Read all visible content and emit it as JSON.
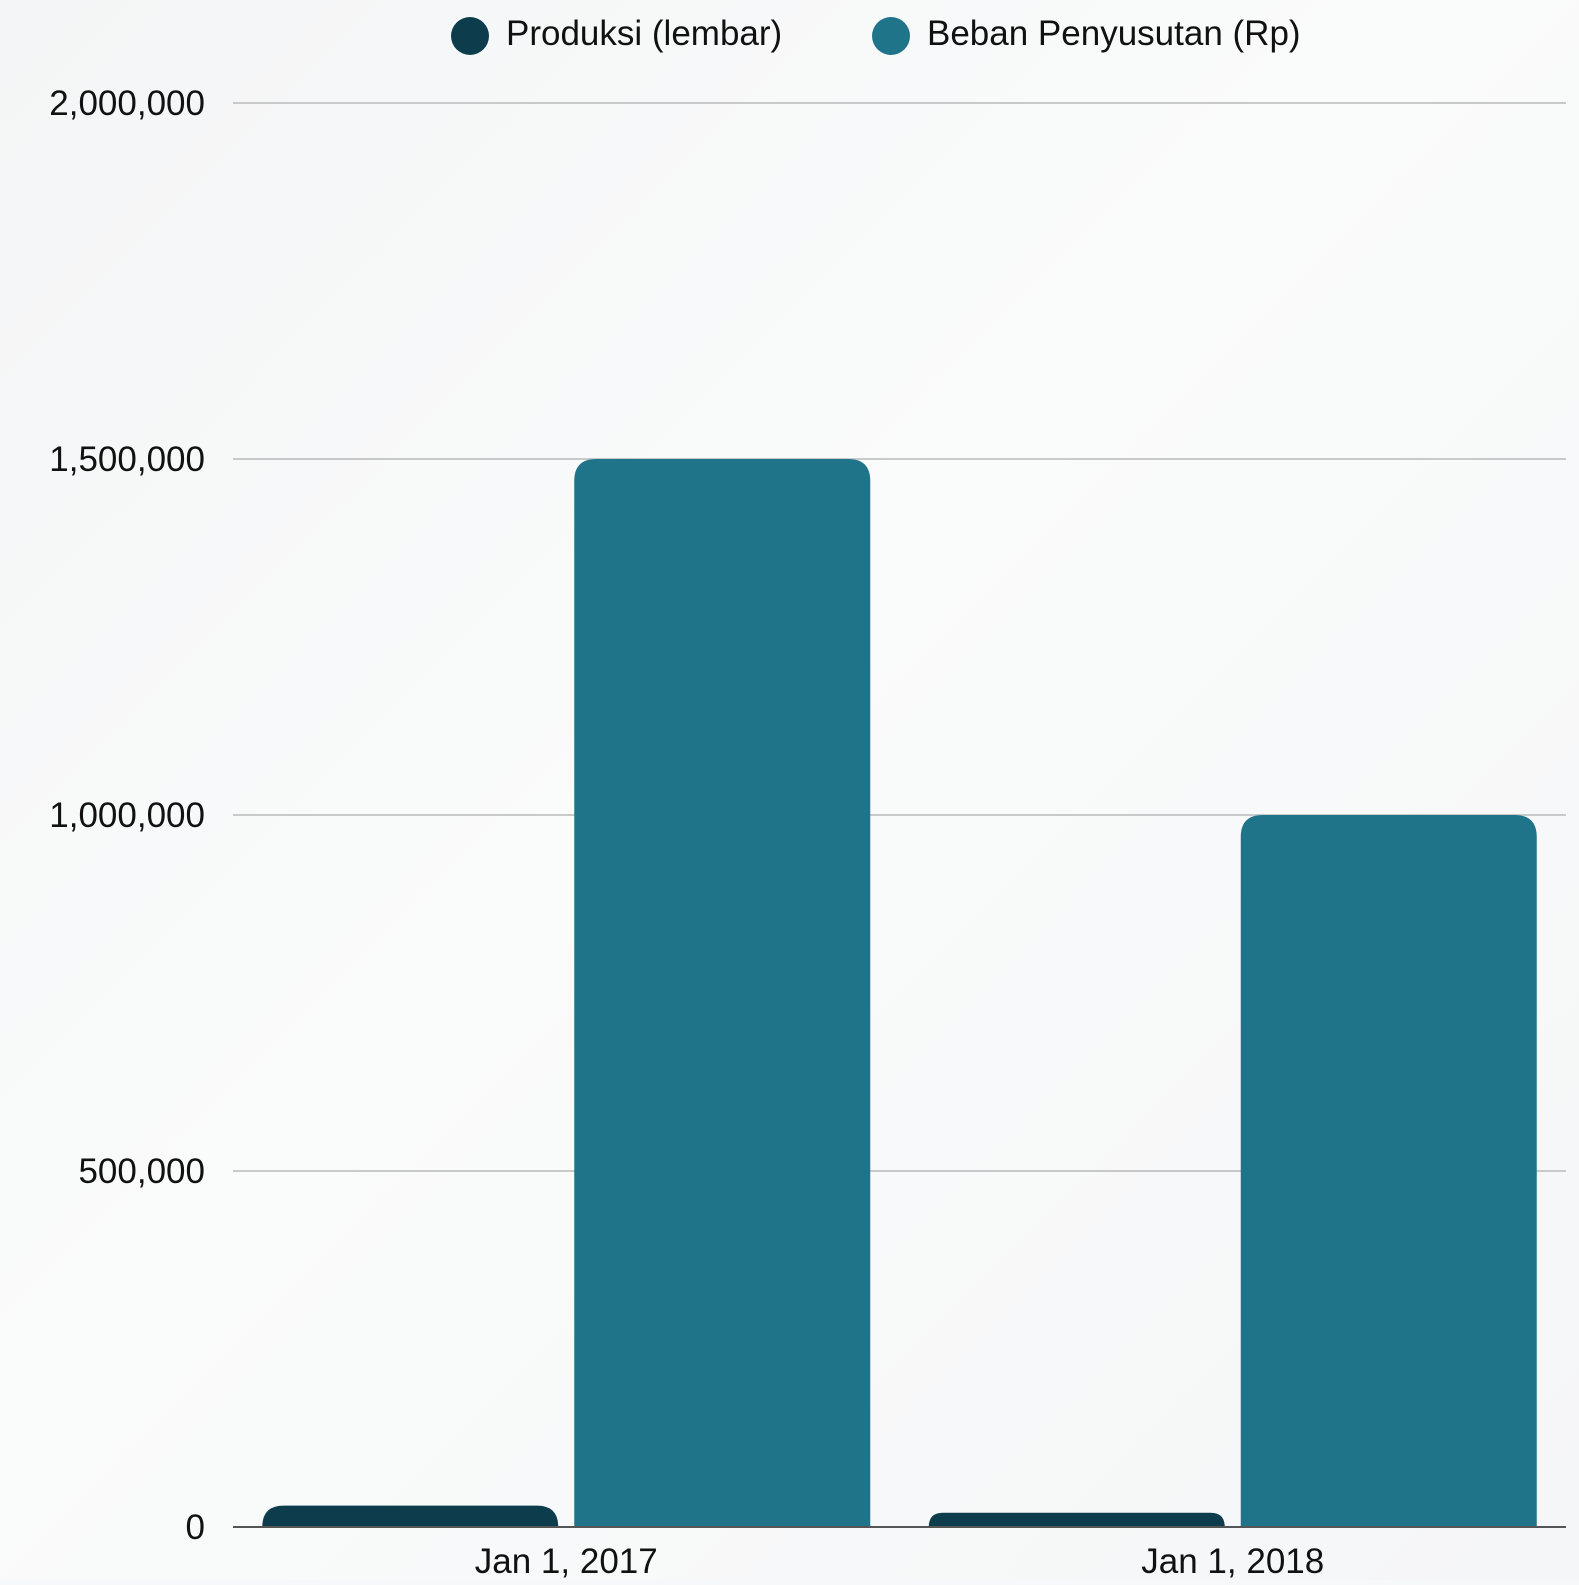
{
  "chart_data": {
    "type": "bar",
    "title": "",
    "xlabel": "",
    "ylabel": "",
    "categories": [
      "Jan 1, 2017",
      "Jan 1, 2018"
    ],
    "series": [
      {
        "name": "Produksi (lembar)",
        "color": "#0d3d4d",
        "values": [
          30000,
          20000
        ]
      },
      {
        "name": "Beban Penyusutan (Rp)",
        "color": "#20748a",
        "values": [
          1500000,
          1000000
        ]
      }
    ],
    "ylim": [
      0,
      2000000
    ],
    "yticks": [
      {
        "value": 0,
        "label": "0"
      },
      {
        "value": 500000,
        "label": "500,000"
      },
      {
        "value": 1000000,
        "label": "1,000,000"
      },
      {
        "value": 1500000,
        "label": "1,500,000"
      },
      {
        "value": 2000000,
        "label": "2,000,000"
      }
    ],
    "grid": true,
    "legend_position": "top-center",
    "gridline_color": "#c8c9cb",
    "axis_color": "#555555"
  }
}
